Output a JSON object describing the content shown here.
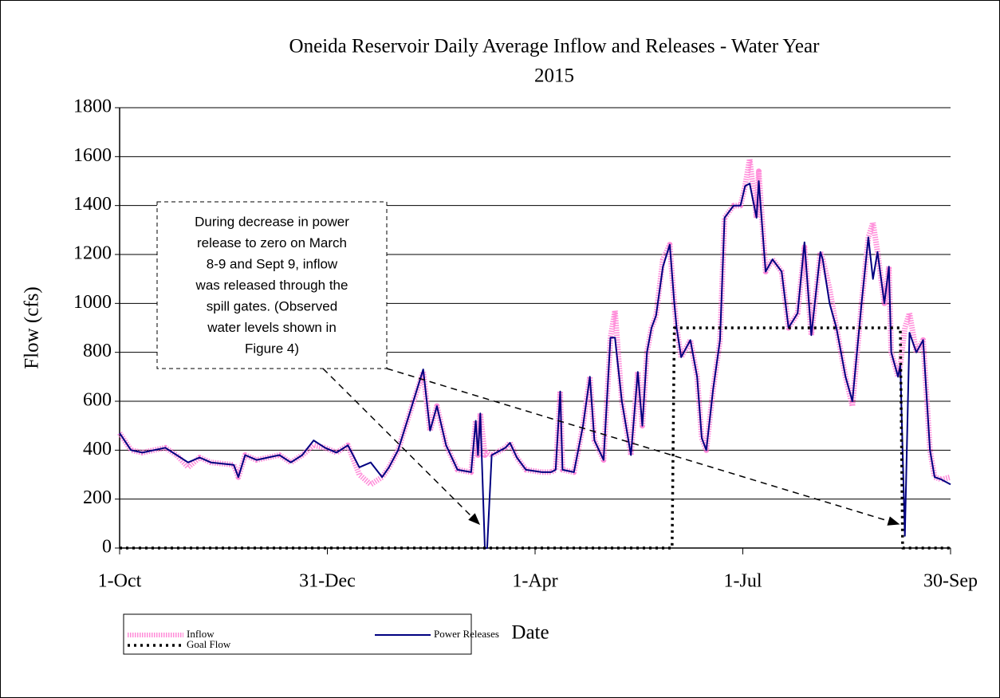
{
  "chart_data": {
    "type": "line",
    "title": [
      "Oneida Reservoir Daily Average Inflow and Releases - Water Year",
      "2015"
    ],
    "x_label": "Date",
    "y_label": "Flow (cfs)",
    "annotation": [
      "During decrease in power",
      "release to zero on March",
      "8-9 and Sept 9, inflow",
      "was released through the",
      "spill gates. (Observed",
      "water levels shown in",
      "Figure 4)"
    ],
    "xlim": [
      0,
      364
    ],
    "xticks": [
      {
        "value": 0,
        "label": "1-Oct"
      },
      {
        "value": 91,
        "label": "31-Dec"
      },
      {
        "value": 182,
        "label": "1-Apr"
      },
      {
        "value": 273,
        "label": "1-Jul"
      },
      {
        "value": 364,
        "label": "30-Sep"
      }
    ],
    "ylim": [
      0,
      1800
    ],
    "yticks": [
      0,
      200,
      400,
      600,
      800,
      1000,
      1200,
      1400,
      1600,
      1800
    ],
    "grid": true,
    "x": [
      0,
      5,
      10,
      15,
      20,
      25,
      30,
      35,
      40,
      45,
      50,
      52,
      55,
      60,
      65,
      70,
      75,
      80,
      85,
      90,
      95,
      100,
      105,
      110,
      115,
      118,
      122,
      127,
      133,
      136,
      139,
      143,
      148,
      154,
      156,
      157,
      158,
      160,
      161,
      163,
      169,
      171,
      174,
      178,
      185,
      189,
      191,
      193,
      194,
      199,
      203,
      206,
      208,
      212,
      215,
      217,
      220,
      224,
      227,
      229,
      231,
      233,
      235,
      238,
      241,
      243,
      244,
      246,
      250,
      253,
      255,
      257,
      260,
      263,
      265,
      269,
      272,
      274,
      276,
      279,
      280,
      283,
      286,
      290,
      293,
      297,
      300,
      303,
      307,
      308,
      311,
      314,
      318,
      321,
      325,
      328,
      330,
      332,
      335,
      337,
      338,
      341,
      342,
      344,
      346,
      349,
      352,
      355,
      357,
      360,
      364
    ],
    "series": [
      {
        "name": "Inflow",
        "color": "#ff66cc",
        "style": "dotted-thick",
        "values": [
          470,
          400,
          390,
          400,
          410,
          380,
          330,
          370,
          350,
          345,
          340,
          290,
          380,
          360,
          370,
          380,
          350,
          380,
          420,
          410,
          390,
          420,
          300,
          260,
          290,
          330,
          400,
          550,
          720,
          480,
          580,
          420,
          320,
          310,
          520,
          380,
          550,
          380,
          390,
          380,
          410,
          430,
          370,
          320,
          310,
          310,
          320,
          640,
          320,
          310,
          500,
          700,
          440,
          360,
          860,
          970,
          600,
          380,
          720,
          500,
          800,
          900,
          950,
          1180,
          1240,
          1000,
          900,
          780,
          850,
          700,
          450,
          400,
          650,
          850,
          1350,
          1400,
          1400,
          1480,
          1590,
          1350,
          1540,
          1130,
          1180,
          1130,
          900,
          960,
          1230,
          870,
          1210,
          1180,
          1060,
          900,
          700,
          580,
          1000,
          1270,
          1330,
          1210,
          1000,
          1150,
          800,
          700,
          750,
          900,
          960,
          800,
          850,
          400,
          290,
          280,
          290
        ]
      },
      {
        "name": "Power Releases",
        "color": "#000080",
        "style": "solid",
        "values": [
          470,
          400,
          390,
          400,
          410,
          380,
          350,
          370,
          350,
          345,
          340,
          290,
          380,
          360,
          370,
          380,
          350,
          380,
          440,
          410,
          390,
          420,
          330,
          350,
          290,
          330,
          400,
          550,
          730,
          480,
          580,
          420,
          320,
          310,
          520,
          380,
          550,
          0,
          0,
          380,
          410,
          430,
          370,
          320,
          310,
          310,
          320,
          640,
          320,
          310,
          500,
          700,
          440,
          360,
          860,
          860,
          600,
          380,
          720,
          500,
          800,
          900,
          950,
          1150,
          1240,
          1000,
          900,
          780,
          850,
          700,
          450,
          400,
          650,
          850,
          1350,
          1400,
          1400,
          1480,
          1490,
          1350,
          1500,
          1130,
          1180,
          1130,
          900,
          960,
          1250,
          870,
          1210,
          1180,
          1000,
          900,
          700,
          600,
          1000,
          1270,
          1100,
          1210,
          1000,
          1150,
          800,
          700,
          750,
          50,
          880,
          800,
          850,
          400,
          290,
          280,
          260
        ]
      },
      {
        "name": "Goal Flow",
        "color": "#000000",
        "style": "dotted",
        "x": [
          0,
          242,
          243,
          342,
          343,
          364
        ],
        "values": [
          0,
          0,
          900,
          900,
          0,
          0
        ]
      }
    ]
  }
}
